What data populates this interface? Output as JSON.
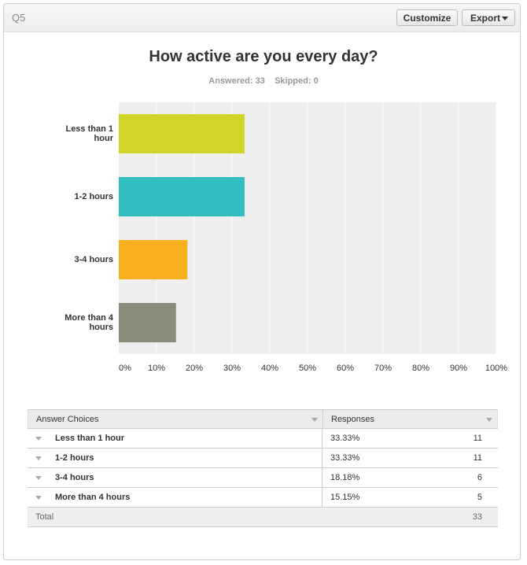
{
  "header": {
    "question": "Q5",
    "buttons": [
      "Customize",
      "Export"
    ]
  },
  "chart_data": {
    "type": "hbar",
    "title": "How active are you every day?",
    "subtitle": {
      "answered_label": "Answered:",
      "answered": 33,
      "skipped_label": "Skipped:",
      "skipped": 0
    },
    "categories": [
      "Less than 1 hour",
      "1-2 hours",
      "3-4 hours",
      "More than 4 hours"
    ],
    "values": [
      33.33,
      33.33,
      18.18,
      15.15
    ],
    "value_labels": [
      "33.33%",
      "33.33%",
      "18.18%",
      "15.15%"
    ],
    "colors": [
      "#d0d52a",
      "#33bfc1",
      "#f8b01e",
      "#8b8b7a"
    ],
    "xlim": [
      0,
      100
    ],
    "xticks": [
      {
        "value": 0,
        "label": "0%"
      },
      {
        "value": 10,
        "label": "10%"
      },
      {
        "value": 20,
        "label": "20%"
      },
      {
        "value": 30,
        "label": "30%"
      },
      {
        "value": 40,
        "label": "40%"
      },
      {
        "value": 50,
        "label": "50%"
      },
      {
        "value": 60,
        "label": "60%"
      },
      {
        "value": 70,
        "label": "70%"
      },
      {
        "value": 80,
        "label": "80%"
      },
      {
        "value": 90,
        "label": "90%"
      },
      {
        "value": 100,
        "label": "100%"
      }
    ],
    "grid": true
  },
  "table": {
    "columns": [
      "Answer Choices",
      "Responses"
    ],
    "counts": [
      11,
      11,
      6,
      5
    ],
    "total_label": "Total",
    "total": 33
  }
}
